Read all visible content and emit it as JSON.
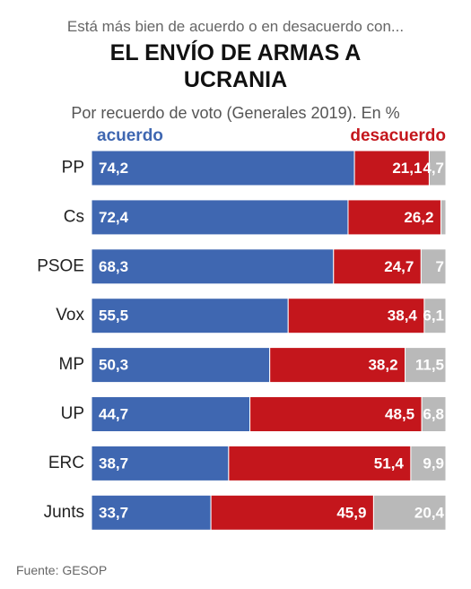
{
  "chart_data": {
    "type": "stacked-bar",
    "orientation": "horizontal",
    "pretitle": "Está más bien de acuerdo o en desacuerdo con...",
    "title": "EL ENVÍO DE ARMAS A UCRANIA",
    "subtitle": "Por recuerdo de voto (Generales 2019). En %",
    "source": "Fuente: GESOP",
    "categories": [
      "PP",
      "Cs",
      "PSOE",
      "Vox",
      "MP",
      "UP",
      "ERC",
      "Junts"
    ],
    "xlim": [
      0,
      100
    ],
    "series": [
      {
        "name": "acuerdo",
        "color": "#3f67b1",
        "values": [
          74.2,
          72.4,
          68.3,
          55.5,
          50.3,
          44.7,
          38.7,
          33.7
        ],
        "value_labels": [
          "74,2",
          "72,4",
          "68,3",
          "55,5",
          "50,3",
          "44,7",
          "38,7",
          "33,7"
        ]
      },
      {
        "name": "desacuerdo",
        "color": "#c4161c",
        "values": [
          21.1,
          26.2,
          24.7,
          38.4,
          38.2,
          48.5,
          51.4,
          45.9
        ],
        "value_labels": [
          "21,1",
          "26,2",
          "24,7",
          "38,4",
          "38,2",
          "48,5",
          "51,4",
          "45,9"
        ]
      },
      {
        "color": "#b9b9b9",
        "values": [
          4.7,
          1.4,
          7,
          6.1,
          11.5,
          6.8,
          9.9,
          20.4
        ],
        "value_labels": [
          "4,7",
          null,
          "7",
          "6,1",
          "11,5",
          "6,8",
          "9,9",
          "20,4"
        ]
      }
    ]
  }
}
